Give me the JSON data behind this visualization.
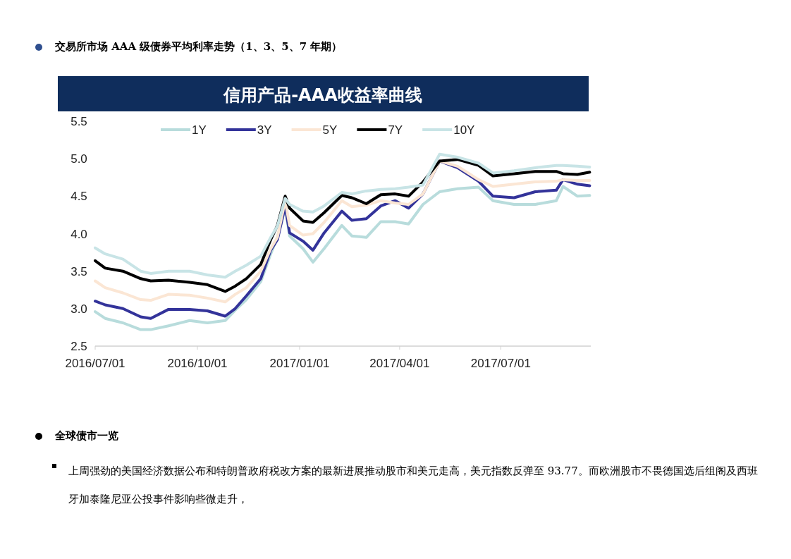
{
  "chart_data": {
    "type": "line",
    "title": "信用产品-AAA收益率曲线",
    "annotations": [
      "交易所市场 AAA 级债券平均利率走势（1、3、5、7 年期）",
      "全球债市一览",
      "上周强劲的美国经济数据公布和特朗普政府税改方案的最新进展推动股市和美元走高，美元指数反弹至 93.77。而欧洲股市不畏德国选后组阁及西班牙加泰隆尼亚公投事件影响些微走升，"
    ],
    "x": [
      "2016-07-01",
      "2016-07-10",
      "2016-07-26",
      "2016-08-11",
      "2016-08-20",
      "2016-09-05",
      "2016-09-24",
      "2016-10-10",
      "2016-10-26",
      "2016-11-04",
      "2016-11-14",
      "2016-11-27",
      "2016-12-06",
      "2016-12-12",
      "2016-12-19",
      "2016-12-23",
      "2017-01-04",
      "2017-01-13",
      "2017-01-23",
      "2017-02-08",
      "2017-02-17",
      "2017-03-02",
      "2017-03-15",
      "2017-03-28",
      "2017-04-09",
      "2017-04-22",
      "2017-05-07",
      "2017-05-23",
      "2017-06-11",
      "2017-06-24",
      "2017-07-13",
      "2017-08-01",
      "2017-08-20",
      "2017-08-26",
      "2017-09-08",
      "2017-09-19"
    ],
    "series": [
      {
        "name": "1Y",
        "color": "#b8dcdc",
        "values": [
          2.96,
          2.87,
          2.81,
          2.72,
          2.72,
          2.77,
          2.84,
          2.81,
          2.84,
          2.98,
          3.12,
          3.36,
          3.73,
          3.95,
          4.34,
          3.97,
          3.8,
          3.62,
          3.8,
          4.11,
          3.97,
          3.95,
          4.16,
          4.16,
          4.13,
          4.39,
          4.56,
          4.6,
          4.62,
          4.44,
          4.39,
          4.39,
          4.44,
          4.63,
          4.5,
          4.51
        ]
      },
      {
        "name": "3Y",
        "color": "#33339a",
        "values": [
          3.1,
          3.05,
          3.0,
          2.89,
          2.87,
          2.99,
          2.99,
          2.97,
          2.9,
          3.0,
          3.17,
          3.4,
          3.78,
          3.92,
          4.37,
          4.01,
          3.9,
          3.78,
          4.01,
          4.3,
          4.18,
          4.2,
          4.37,
          4.44,
          4.34,
          4.53,
          4.97,
          4.88,
          4.7,
          4.5,
          4.48,
          4.56,
          4.58,
          4.72,
          4.66,
          4.64
        ]
      },
      {
        "name": "5Y",
        "color": "#fbe6d4",
        "values": [
          3.37,
          3.28,
          3.21,
          3.12,
          3.11,
          3.19,
          3.18,
          3.14,
          3.09,
          3.19,
          3.28,
          3.5,
          3.8,
          3.95,
          4.44,
          4.11,
          3.98,
          4.0,
          4.15,
          4.44,
          4.36,
          4.38,
          4.44,
          4.41,
          4.39,
          4.53,
          4.97,
          4.9,
          4.72,
          4.63,
          4.66,
          4.69,
          4.7,
          4.72,
          4.71,
          4.71
        ]
      },
      {
        "name": "7Y",
        "color": "#000000",
        "values": [
          3.64,
          3.54,
          3.5,
          3.4,
          3.37,
          3.38,
          3.35,
          3.32,
          3.23,
          3.3,
          3.4,
          3.59,
          3.92,
          4.11,
          4.5,
          4.34,
          4.17,
          4.15,
          4.28,
          4.51,
          4.48,
          4.4,
          4.52,
          4.53,
          4.5,
          4.69,
          4.97,
          4.99,
          4.91,
          4.77,
          4.8,
          4.83,
          4.83,
          4.8,
          4.79,
          4.82
        ]
      },
      {
        "name": "10Y",
        "color": "#c8e4e6",
        "values": [
          3.81,
          3.73,
          3.66,
          3.5,
          3.47,
          3.5,
          3.5,
          3.45,
          3.42,
          3.5,
          3.58,
          3.7,
          3.95,
          4.1,
          4.47,
          4.39,
          4.3,
          4.29,
          4.37,
          4.55,
          4.53,
          4.57,
          4.59,
          4.6,
          4.62,
          4.65,
          5.06,
          5.02,
          4.94,
          4.81,
          4.84,
          4.88,
          4.91,
          4.91,
          4.9,
          4.89
        ]
      }
    ],
    "xlim": [
      "2016-07-01",
      "2017-09-20"
    ],
    "xticks": [
      {
        "value": "2016-07-01",
        "label": "2016/07/01"
      },
      {
        "value": "2016-10-01",
        "label": "2016/10/01"
      },
      {
        "value": "2017-01-01",
        "label": "2017/01/01"
      },
      {
        "value": "2017-04-01",
        "label": "2017/04/01"
      },
      {
        "value": "2017-07-01",
        "label": "2017/07/01"
      }
    ],
    "ylim": [
      2.5,
      5.5
    ],
    "yticks": [
      {
        "value": 2.5,
        "label": "2.5"
      },
      {
        "value": 3,
        "label": "3.0"
      },
      {
        "value": 3.5,
        "label": "3.5"
      },
      {
        "value": 4,
        "label": "4.0"
      },
      {
        "value": 4.5,
        "label": "4.5"
      },
      {
        "value": 5,
        "label": "5.0"
      },
      {
        "value": 5.5,
        "label": "5.5"
      }
    ],
    "legend": "top"
  }
}
